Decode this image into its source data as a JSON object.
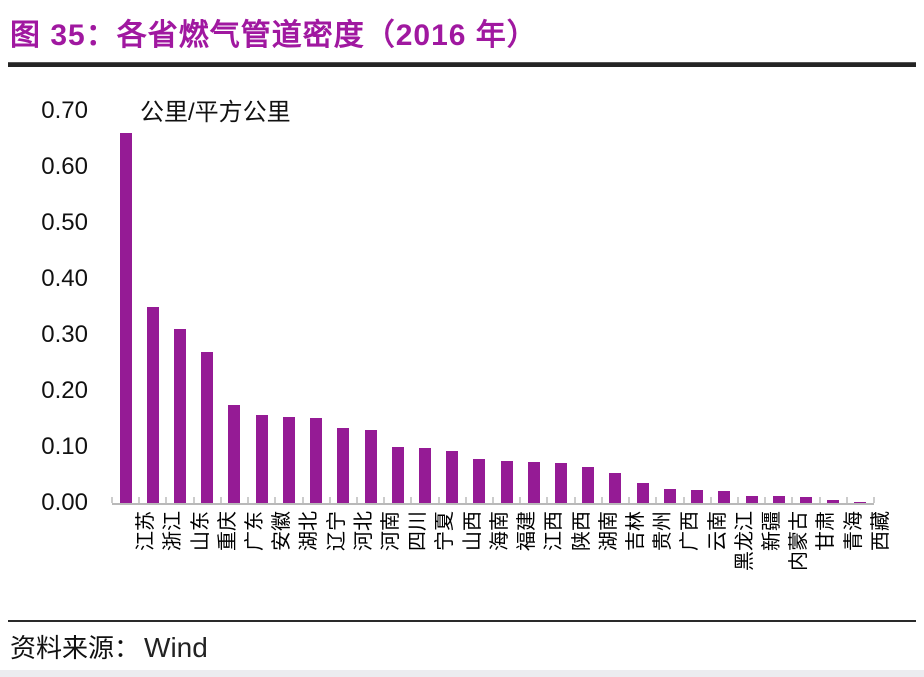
{
  "header": {
    "title": "图 35：各省燃气管道密度（2016 年）"
  },
  "chart_data": {
    "type": "bar",
    "title": "各省燃气管道密度（2016 年）",
    "unit_label": "公里/平方公里",
    "ylabel": "公里/平方公里",
    "xlabel": "",
    "categories": [
      "江苏",
      "浙江",
      "山东",
      "重庆",
      "广东",
      "安徽",
      "湖北",
      "辽宁",
      "河北",
      "河南",
      "四川",
      "宁夏",
      "山西",
      "海南",
      "福建",
      "江西",
      "陕西",
      "湖南",
      "吉林",
      "贵州",
      "广西",
      "云南",
      "黑龙江",
      "新疆",
      "内蒙古",
      "甘肃",
      "青海",
      "西藏"
    ],
    "values": [
      0.66,
      0.35,
      0.31,
      0.27,
      0.175,
      0.157,
      0.154,
      0.152,
      0.134,
      0.13,
      0.1,
      0.099,
      0.092,
      0.078,
      0.075,
      0.074,
      0.071,
      0.065,
      0.053,
      0.035,
      0.025,
      0.024,
      0.021,
      0.013,
      0.013,
      0.011,
      0.006,
      0.002
    ],
    "ylim": [
      0,
      0.7
    ],
    "yticks": [
      0,
      0.1,
      0.2,
      0.3,
      0.4,
      0.5,
      0.6,
      0.7
    ],
    "ytick_labels": [
      "0.00",
      "0.10",
      "0.20",
      "0.30",
      "0.40",
      "0.50",
      "0.60",
      "0.70"
    ],
    "grid": false,
    "legend": null,
    "bar_color": "#951B95"
  },
  "footer": {
    "source_label": "资料来源：",
    "source_value": "Wind"
  },
  "colors": {
    "title_accent": "#A018A0",
    "bar": "#951B95",
    "axis_line": "#B9B9B9",
    "tick": "#CCCCCC",
    "rule": "#242424",
    "bottom_strip": "#ECECF0"
  }
}
